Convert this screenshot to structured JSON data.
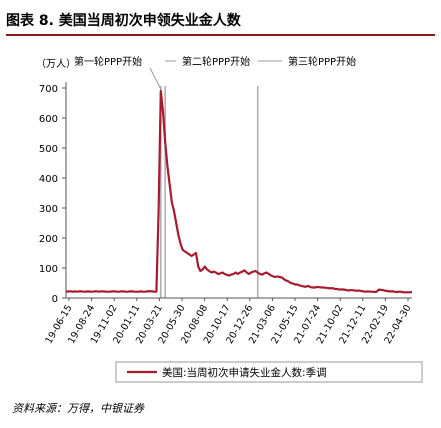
{
  "title": "图表 8. 美国当周初次申领失业金人数",
  "source": "资料来源：万得，中银证券",
  "chart_data": {
    "type": "line",
    "unit_label": "（万人）",
    "ylim": [
      0,
      700
    ],
    "yticks": [
      0,
      100,
      200,
      300,
      400,
      500,
      600,
      700
    ],
    "xticks": [
      "19-06-15",
      "19-08-24",
      "19-11-02",
      "20-01-11",
      "20-03-21",
      "20-05-30",
      "20-08-08",
      "20-10-17",
      "20-12-26",
      "21-03-06",
      "21-05-15",
      "21-07-24",
      "21-10-02",
      "21-12-11",
      "22-02-19",
      "22-04-30"
    ],
    "grid": false,
    "legend_position": "bottom",
    "series": [
      {
        "name": "美国:当周初次申请失业金人数:季调",
        "color": "#a81a2d",
        "values": [
          21,
          22,
          22,
          21,
          22,
          21,
          22,
          22,
          21,
          21,
          22,
          21,
          21,
          22,
          22,
          21,
          22,
          22,
          21,
          21,
          21,
          22,
          22,
          21,
          21,
          22,
          22,
          21,
          21,
          22,
          22,
          21,
          21,
          21,
          22,
          21,
          21,
          22,
          23,
          22,
          21,
          21,
          290,
          690,
          620,
          520,
          440,
          380,
          320,
          290,
          250,
          210,
          180,
          160,
          155,
          150,
          145,
          140,
          145,
          150,
          105,
          90,
          95,
          105,
          95,
          90,
          85,
          88,
          85,
          80,
          82,
          85,
          80,
          77,
          75,
          78,
          80,
          85,
          80,
          85,
          88,
          92,
          85,
          80,
          85,
          88,
          90,
          85,
          80,
          78,
          82,
          85,
          80,
          75,
          72,
          70,
          72,
          70,
          68,
          62,
          58,
          55,
          50,
          48,
          45,
          45,
          42,
          40,
          38,
          38,
          40,
          36,
          35,
          35,
          37,
          36,
          35,
          35,
          34,
          33,
          32,
          33,
          30,
          30,
          28,
          29,
          28,
          27,
          25,
          26,
          26,
          25,
          24,
          25,
          23,
          22,
          21,
          22,
          21,
          21,
          20,
          21,
          28,
          27,
          26,
          24,
          23,
          22,
          22,
          21,
          20,
          21,
          21,
          19,
          19,
          19,
          19,
          20
        ]
      }
    ],
    "annotations": [
      {
        "label": "第一轮PPP开始",
        "x_index": 43
      },
      {
        "label": "第二轮PPP开始",
        "x_index": 45
      },
      {
        "label": "第三轮PPP开始",
        "x_index": 87
      }
    ]
  }
}
